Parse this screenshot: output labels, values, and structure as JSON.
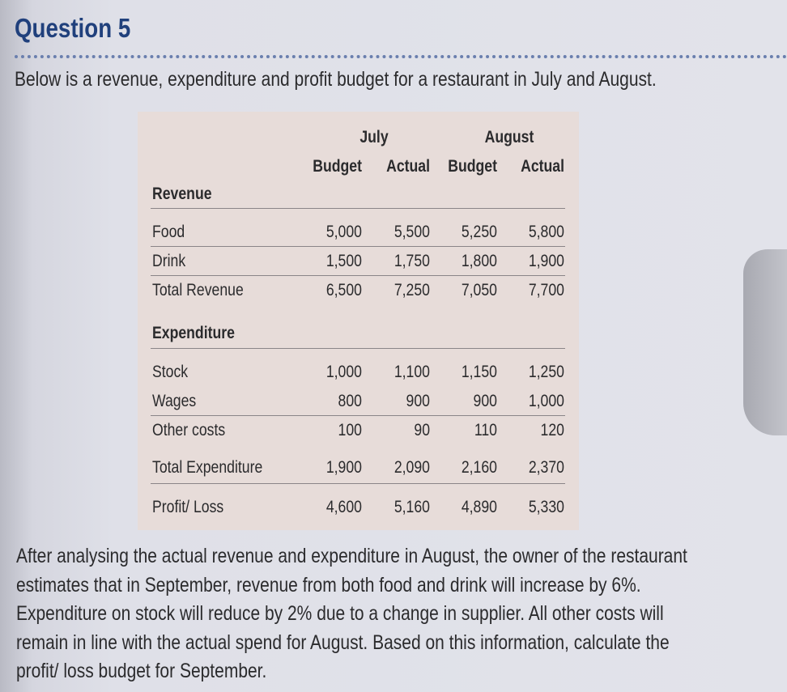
{
  "header": {
    "title": "Question 5",
    "intro": "Below is a revenue, expenditure and profit budget for a restaurant in July and August."
  },
  "table": {
    "months": [
      "July",
      "August"
    ],
    "columns": [
      "Budget",
      "Actual",
      "Budget",
      "Actual"
    ],
    "sections": [
      {
        "heading": "Revenue",
        "rows": [
          {
            "label": "Food",
            "values": [
              "5,000",
              "5,500",
              "5,250",
              "5,800"
            ]
          },
          {
            "label": "Drink",
            "values": [
              "1,500",
              "1,750",
              "1,800",
              "1,900"
            ]
          },
          {
            "label": "Total Revenue",
            "values": [
              "6,500",
              "7,250",
              "7,050",
              "7,700"
            ]
          }
        ]
      },
      {
        "heading": "Expenditure",
        "rows": [
          {
            "label": "Stock",
            "values": [
              "1,000",
              "1,100",
              "1,150",
              "1,250"
            ]
          },
          {
            "label": "Wages",
            "values": [
              "800",
              "900",
              "900",
              "1,000"
            ]
          },
          {
            "label": "Other costs",
            "values": [
              "100",
              "90",
              "110",
              "120"
            ]
          }
        ]
      }
    ],
    "totals": [
      {
        "label": "Total Expenditure",
        "values": [
          "1,900",
          "2,090",
          "2,160",
          "2,370"
        ]
      },
      {
        "label": "Profit/ Loss",
        "values": [
          "4,600",
          "5,160",
          "4,890",
          "5,330"
        ]
      }
    ]
  },
  "question": {
    "lines": [
      "After analysing the actual revenue and expenditure in August, the owner of the restaurant",
      "estimates that in September, revenue from both food and drink will increase by 6%.",
      "Expenditure on stock will reduce by 2% due to a change in supplier. All other costs will",
      "remain in line with the actual spend for August. Based on this information, calculate the",
      "profit/ loss budget for September."
    ]
  }
}
